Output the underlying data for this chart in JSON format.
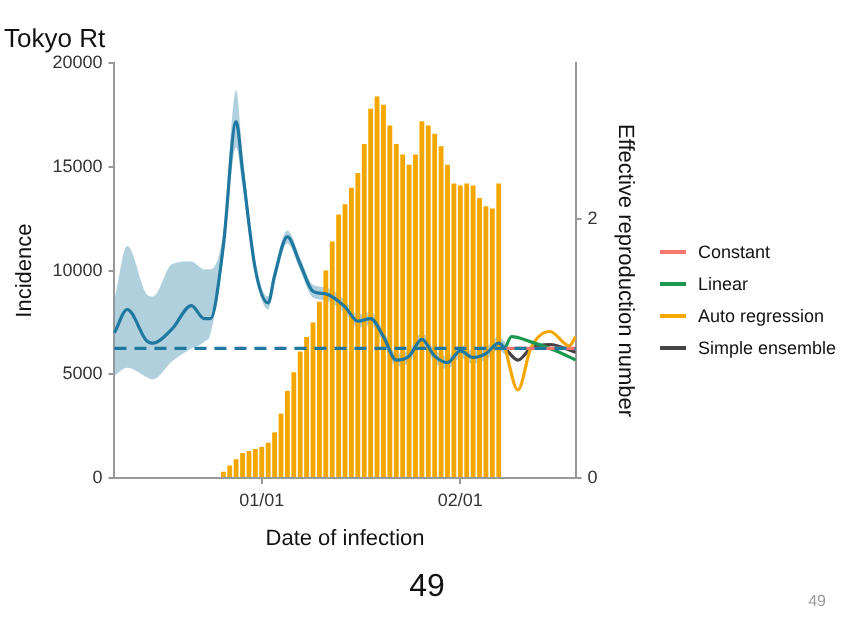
{
  "chart_data": {
    "type": "line",
    "title": "Tokyo Rt",
    "xlabel": "Date of infection",
    "ylabel": "Incidence",
    "y2label": "Effective reproduction number",
    "categories": [
      null,
      null,
      null,
      null,
      null,
      null,
      null,
      null,
      null,
      null,
      null,
      null,
      null,
      null,
      null,
      null,
      null,
      null,
      null,
      null,
      null,
      null,
      null,
      "01/01",
      null,
      null,
      null,
      null,
      null,
      null,
      null,
      null,
      null,
      null,
      null,
      null,
      null,
      null,
      null,
      null,
      null,
      null,
      null,
      null,
      null,
      null,
      null,
      null,
      null,
      null,
      null,
      null,
      null,
      null,
      "02/01",
      null,
      null,
      null,
      null,
      null,
      null,
      null,
      null,
      null,
      null,
      null,
      null,
      null,
      null,
      null,
      null,
      null,
      null
    ],
    "ylim": [
      0,
      20000
    ],
    "yticks": [
      0,
      5000,
      10000,
      15000,
      20000
    ],
    "y2lim": [
      0,
      3.2
    ],
    "y2ticks": [
      0,
      2
    ],
    "grid": false,
    "legend": "right",
    "marker": "none",
    "line_style": "solid",
    "ref_lines": [
      {
        "axis": "y2",
        "value": 1,
        "color": "#1f78a0",
        "line_style": "dashed"
      }
    ],
    "annotations": [
      "49",
      "49"
    ],
    "series": [
      {
        "type": "bar",
        "color": "#f5a700",
        "values": [
          null,
          null,
          null,
          null,
          null,
          null,
          null,
          null,
          null,
          null,
          null,
          null,
          null,
          null,
          null,
          null,
          null,
          300,
          600,
          900,
          1200,
          1300,
          1400,
          1500,
          1700,
          2200,
          3100,
          4200,
          5100,
          6100,
          6800,
          7500,
          8500,
          10000,
          11400,
          12700,
          13200,
          14000,
          14700,
          16100,
          17800,
          18400,
          18000,
          17000,
          16100,
          15600,
          15100,
          15600,
          17200,
          17000,
          16600,
          16000,
          15100,
          14200,
          14100,
          14200,
          14100,
          13500,
          13100,
          13000,
          14200,
          null,
          null,
          null,
          null,
          null,
          null,
          null,
          null,
          null,
          null,
          null,
          null
        ]
      },
      {
        "axis": "y2",
        "color": "#1f78a0",
        "values": [
          1.12,
          null,
          1.3,
          null,
          null,
          1.06,
          1.04,
          null,
          null,
          1.15,
          null,
          null,
          1.33,
          null,
          1.23,
          1.23,
          null,
          1.79,
          null,
          2.75,
          2.37,
          null,
          1.61,
          null,
          1.35,
          1.56,
          null,
          1.86,
          null,
          1.65,
          null,
          1.44,
          null,
          1.42,
          null,
          null,
          1.32,
          null,
          1.21,
          null,
          1.23,
          null,
          1.09,
          null,
          0.91,
          null,
          0.94,
          null,
          1.07,
          null,
          0.94,
          null,
          0.89,
          null,
          0.98,
          null,
          0.93,
          null,
          0.96,
          null,
          1.04,
          1.0,
          null,
          null,
          null,
          null,
          null,
          null,
          null,
          null,
          null,
          null,
          null
        ],
        "upper": [
          1.38,
          null,
          1.79,
          null,
          null,
          1.42,
          1.4,
          null,
          null,
          1.65,
          null,
          null,
          1.67,
          null,
          1.61,
          1.61,
          null,
          1.9,
          null,
          2.99,
          2.5,
          null,
          1.66,
          null,
          1.4,
          1.61,
          null,
          1.91,
          null,
          1.7,
          null,
          1.49,
          null,
          1.47,
          null,
          null,
          1.37,
          null,
          1.26,
          null,
          1.28,
          null,
          1.14,
          null,
          0.96,
          null,
          0.99,
          null,
          1.12,
          null,
          0.99,
          null,
          0.94,
          null,
          1.03,
          null,
          0.98,
          null,
          1.01,
          null,
          1.09,
          1.05,
          null,
          null,
          null,
          null,
          null,
          null,
          null,
          null,
          null,
          null,
          null
        ],
        "lower": [
          0.79,
          null,
          0.85,
          null,
          null,
          0.78,
          0.76,
          null,
          null,
          0.9,
          null,
          null,
          1.0,
          null,
          1.05,
          1.11,
          null,
          1.7,
          null,
          2.55,
          2.25,
          null,
          1.56,
          null,
          1.3,
          1.51,
          null,
          1.81,
          null,
          1.6,
          null,
          1.39,
          null,
          1.37,
          null,
          null,
          1.27,
          null,
          1.16,
          null,
          1.18,
          null,
          1.04,
          null,
          0.86,
          null,
          0.89,
          null,
          1.02,
          null,
          0.89,
          null,
          0.84,
          null,
          0.93,
          null,
          0.88,
          null,
          0.91,
          null,
          0.99,
          0.95,
          null,
          null,
          null,
          null,
          null,
          null,
          null,
          null,
          null,
          null,
          null
        ]
      },
      {
        "axis": "y2",
        "name": "Constant",
        "color": "#f8766d",
        "values": [
          null,
          null,
          null,
          null,
          null,
          null,
          null,
          null,
          null,
          null,
          null,
          null,
          null,
          null,
          null,
          null,
          null,
          null,
          null,
          null,
          null,
          null,
          null,
          null,
          null,
          null,
          null,
          null,
          null,
          null,
          null,
          null,
          null,
          null,
          null,
          null,
          null,
          null,
          null,
          null,
          null,
          null,
          null,
          null,
          null,
          null,
          null,
          null,
          null,
          null,
          null,
          null,
          null,
          null,
          null,
          null,
          null,
          null,
          null,
          null,
          null,
          1.0,
          null,
          null,
          null,
          null,
          null,
          null,
          null,
          null,
          null,
          null,
          1.0
        ]
      },
      {
        "axis": "y2",
        "name": "Linear",
        "color": "#1a9850",
        "values": [
          null,
          null,
          null,
          null,
          null,
          null,
          null,
          null,
          null,
          null,
          null,
          null,
          null,
          null,
          null,
          null,
          null,
          null,
          null,
          null,
          null,
          null,
          null,
          null,
          null,
          null,
          null,
          null,
          null,
          null,
          null,
          null,
          null,
          null,
          null,
          null,
          null,
          null,
          null,
          null,
          null,
          null,
          null,
          null,
          null,
          null,
          null,
          null,
          null,
          null,
          null,
          null,
          null,
          null,
          null,
          null,
          null,
          null,
          null,
          null,
          null,
          1.0,
          1.09,
          null,
          null,
          1.05,
          null,
          null,
          null,
          0.98,
          null,
          null,
          0.91
        ]
      },
      {
        "axis": "y2",
        "name": "Auto regression",
        "color": "#f5a700",
        "values": [
          null,
          null,
          null,
          null,
          null,
          null,
          null,
          null,
          null,
          null,
          null,
          null,
          null,
          null,
          null,
          null,
          null,
          null,
          null,
          null,
          null,
          null,
          null,
          null,
          null,
          null,
          null,
          null,
          null,
          null,
          null,
          null,
          null,
          null,
          null,
          null,
          null,
          null,
          null,
          null,
          null,
          null,
          null,
          null,
          null,
          null,
          null,
          null,
          null,
          null,
          null,
          null,
          null,
          null,
          null,
          null,
          null,
          null,
          null,
          null,
          null,
          1.0,
          null,
          0.68,
          null,
          1.0,
          null,
          null,
          1.13,
          null,
          null,
          1.02,
          1.09
        ]
      },
      {
        "axis": "y2",
        "name": "Simple ensemble",
        "color": "#444444",
        "values": [
          null,
          null,
          null,
          null,
          null,
          null,
          null,
          null,
          null,
          null,
          null,
          null,
          null,
          null,
          null,
          null,
          null,
          null,
          null,
          null,
          null,
          null,
          null,
          null,
          null,
          null,
          null,
          null,
          null,
          null,
          null,
          null,
          null,
          null,
          null,
          null,
          null,
          null,
          null,
          null,
          null,
          null,
          null,
          null,
          null,
          null,
          null,
          null,
          null,
          null,
          null,
          null,
          null,
          null,
          null,
          null,
          null,
          null,
          null,
          null,
          null,
          1.0,
          null,
          0.91,
          null,
          1.0,
          null,
          null,
          1.03,
          null,
          null,
          null,
          0.97
        ]
      }
    ]
  }
}
